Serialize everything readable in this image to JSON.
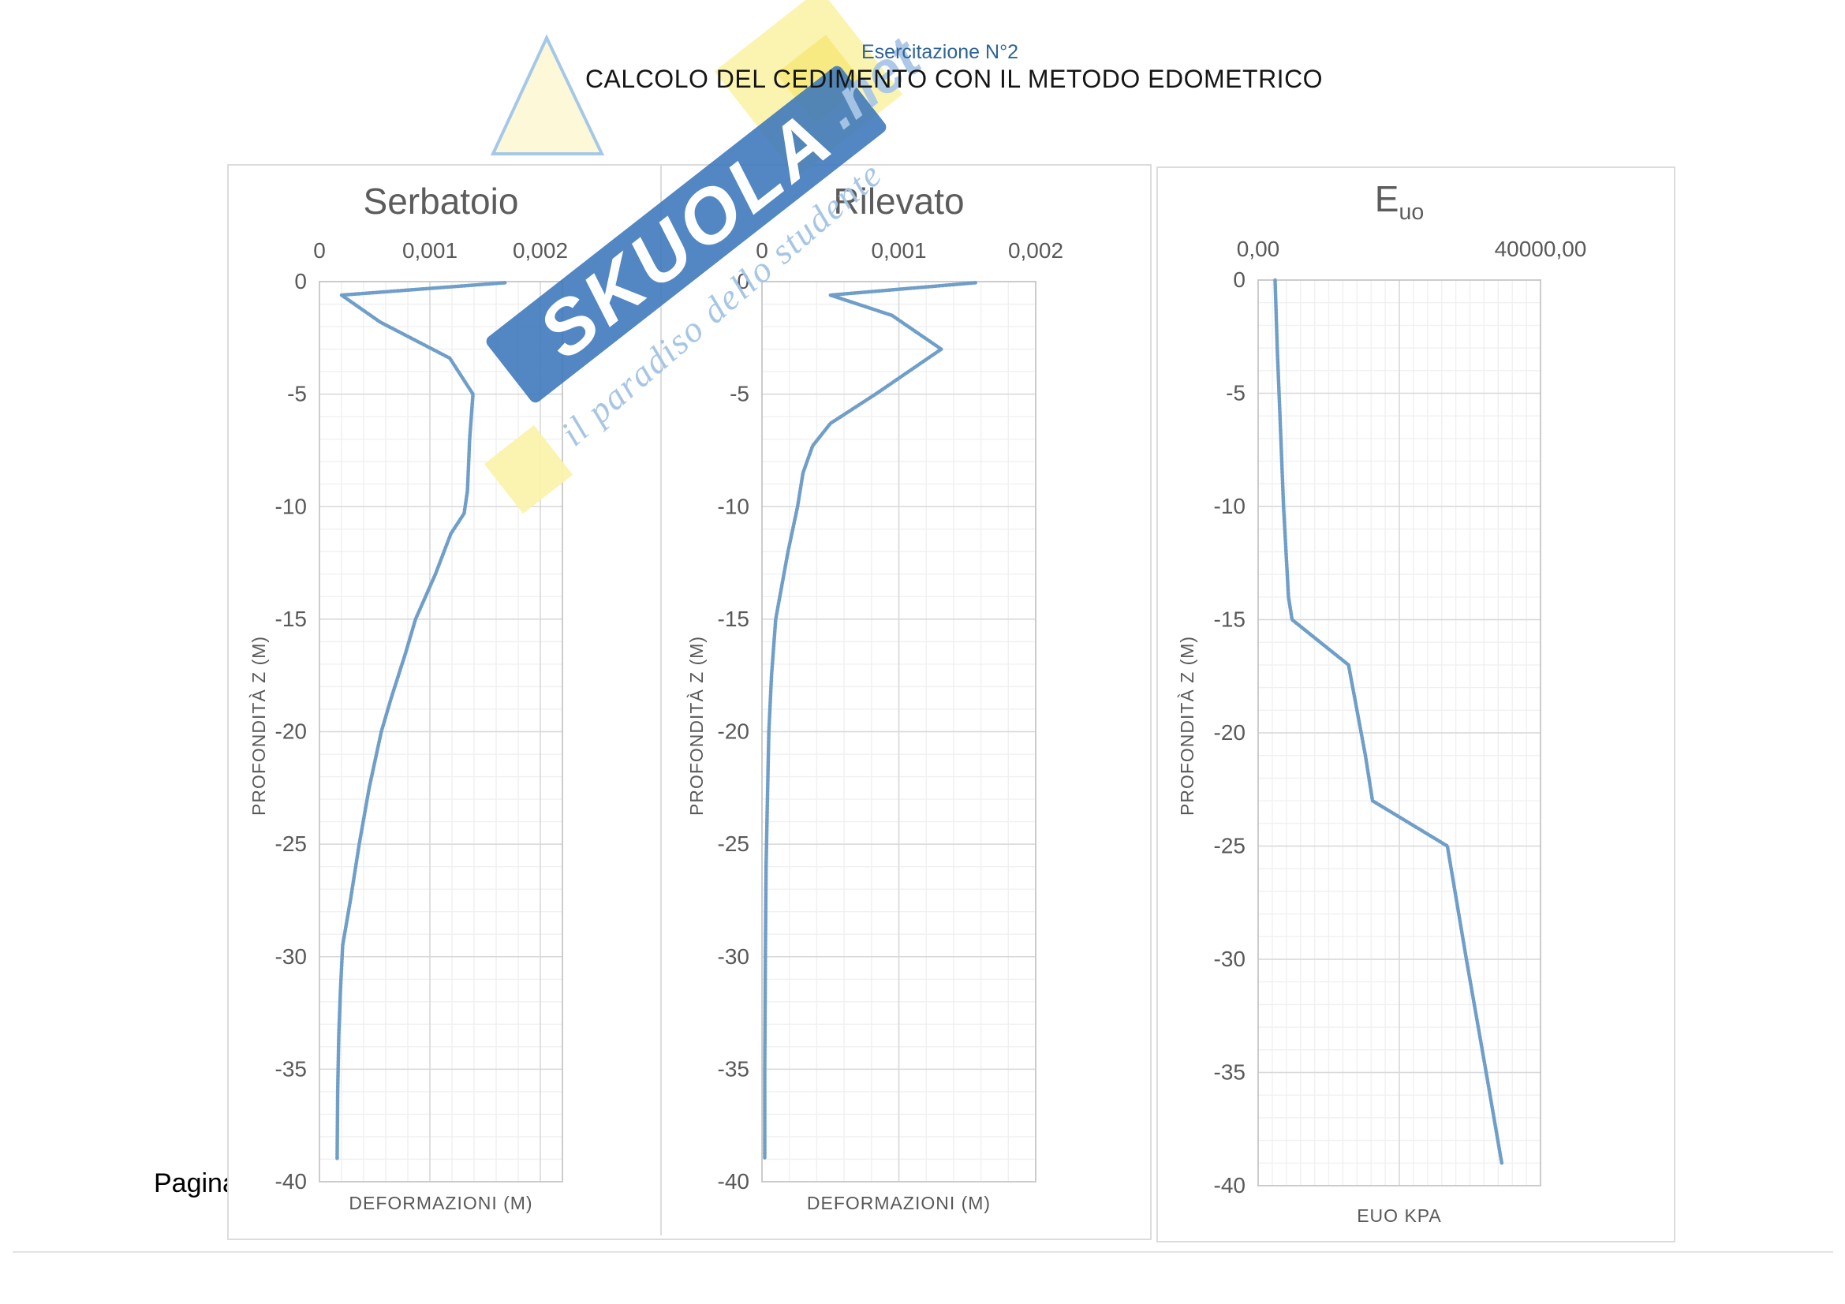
{
  "page": {
    "subtitle": "Esercitazione N°2",
    "title": "CALCOLO DEL CEDIMENTO CON IL METODO EDOMETRICO",
    "footer": "Pagina",
    "colors": {
      "accent_blue": "#2D6494",
      "curve": "#6F9EC9",
      "grid_minor": "#F0F0F0",
      "grid_major": "#D9D9D9",
      "plot_border": "#C6C6C6",
      "label": "#595959",
      "panel_border": "#DCDCDC"
    }
  },
  "watermark": {
    "brand": "SKUOLA",
    "brand_suffix": ".net",
    "tagline": "il paradiso dello studente",
    "band_color": "#3A76BB",
    "accent_yellow_pale": "#FBF3A8",
    "accent_yellow_bright": "#F7E97E",
    "light_blue": "#A9C7E6",
    "text_color": "#FFFFFF"
  },
  "chart_data": [
    {
      "type": "line",
      "title": "Serbatoio",
      "xlabel": "DEFORMAZIONI (M)",
      "ylabel": "PROFONDITÀ Z (M)",
      "xlim": [
        0,
        0.0022
      ],
      "ylim": [
        -40,
        0
      ],
      "x_ticks": [
        {
          "v": 0,
          "label": "0"
        },
        {
          "v": 0.001,
          "label": "0,001"
        },
        {
          "v": 0.002,
          "label": "0,002"
        }
      ],
      "x_majors": [
        0.001,
        0.002
      ],
      "x_minor": 0.0002,
      "y_major": 5,
      "y_minor": 1,
      "grid": true,
      "legend": "none",
      "series": [
        {
          "name": "cedimento-serbatoio",
          "points": [
            [
              0.00168,
              -0.05
            ],
            [
              0.0002,
              -0.6
            ],
            [
              0.00055,
              -1.8
            ],
            [
              0.00118,
              -3.4
            ],
            [
              0.00139,
              -5
            ],
            [
              0.00136,
              -7
            ],
            [
              0.00134,
              -9.3
            ],
            [
              0.00131,
              -10.3
            ],
            [
              0.00119,
              -11.2
            ],
            [
              0.00105,
              -13
            ],
            [
              0.00087,
              -15
            ],
            [
              0.00078,
              -16.5
            ],
            [
              0.00065,
              -18.5
            ],
            [
              0.00056,
              -20
            ],
            [
              0.00045,
              -22.5
            ],
            [
              0.00036,
              -25
            ],
            [
              0.00028,
              -27.5
            ],
            [
              0.00021,
              -29.5
            ],
            [
              0.00019,
              -31.5
            ],
            [
              0.000175,
              -33.5
            ],
            [
              0.000165,
              -36
            ],
            [
              0.00016,
              -39
            ]
          ]
        }
      ]
    },
    {
      "type": "line",
      "title": "Rilevato",
      "xlabel": "DEFORMAZIONI (M)",
      "ylabel": "PROFONDITÀ Z (M)",
      "xlim": [
        0,
        0.002
      ],
      "ylim": [
        -40,
        0
      ],
      "x_ticks": [
        {
          "v": 0,
          "label": "0"
        },
        {
          "v": 0.001,
          "label": "0,001"
        },
        {
          "v": 0.002,
          "label": "0,002"
        }
      ],
      "x_majors": [
        0.001,
        0.002
      ],
      "x_minor": 0.0002,
      "y_major": 5,
      "y_minor": 1,
      "grid": true,
      "legend": "none",
      "series": [
        {
          "name": "cedimento-rilevato",
          "points": [
            [
              0.00156,
              -0.05
            ],
            [
              0.0005,
              -0.6
            ],
            [
              0.00095,
              -1.5
            ],
            [
              0.00131,
              -3
            ],
            [
              0.00083,
              -5
            ],
            [
              0.0005,
              -6.3
            ],
            [
              0.00037,
              -7.3
            ],
            [
              0.0003,
              -8.5
            ],
            [
              0.00026,
              -10
            ],
            [
              0.00019,
              -12
            ],
            [
              0.00013,
              -14
            ],
            [
              0.0001,
              -15
            ],
            [
              7e-05,
              -17.5
            ],
            [
              5e-05,
              -20
            ],
            [
              4e-05,
              -23
            ],
            [
              3e-05,
              -26
            ],
            [
              2.5e-05,
              -30
            ],
            [
              2e-05,
              -35
            ],
            [
              2e-05,
              -39
            ]
          ]
        }
      ]
    },
    {
      "type": "line",
      "title": "E",
      "title_sub": "uo",
      "xlabel": "EUO KPA",
      "ylabel": "PROFONDITÀ Z (M)",
      "xlim": [
        0,
        40000
      ],
      "ylim": [
        -40,
        0
      ],
      "x_ticks": [
        {
          "v": 0,
          "label": "0,00"
        },
        {
          "v": 40000,
          "label": "40000,00"
        }
      ],
      "x_majors": [
        20000,
        40000
      ],
      "x_minor": 2000,
      "y_major": 5,
      "y_minor": 1,
      "grid": true,
      "legend": "none",
      "series": [
        {
          "name": "modulo-edometrico-euo",
          "points": [
            [
              2400,
              0
            ],
            [
              2700,
              -3
            ],
            [
              3100,
              -6
            ],
            [
              3600,
              -10
            ],
            [
              4300,
              -14
            ],
            [
              4800,
              -15
            ],
            [
              12800,
              -17
            ],
            [
              14000,
              -19
            ],
            [
              15200,
              -21
            ],
            [
              16200,
              -23
            ],
            [
              26800,
              -25
            ],
            [
              29500,
              -30
            ],
            [
              32300,
              -35
            ],
            [
              34500,
              -39
            ]
          ]
        }
      ]
    }
  ]
}
